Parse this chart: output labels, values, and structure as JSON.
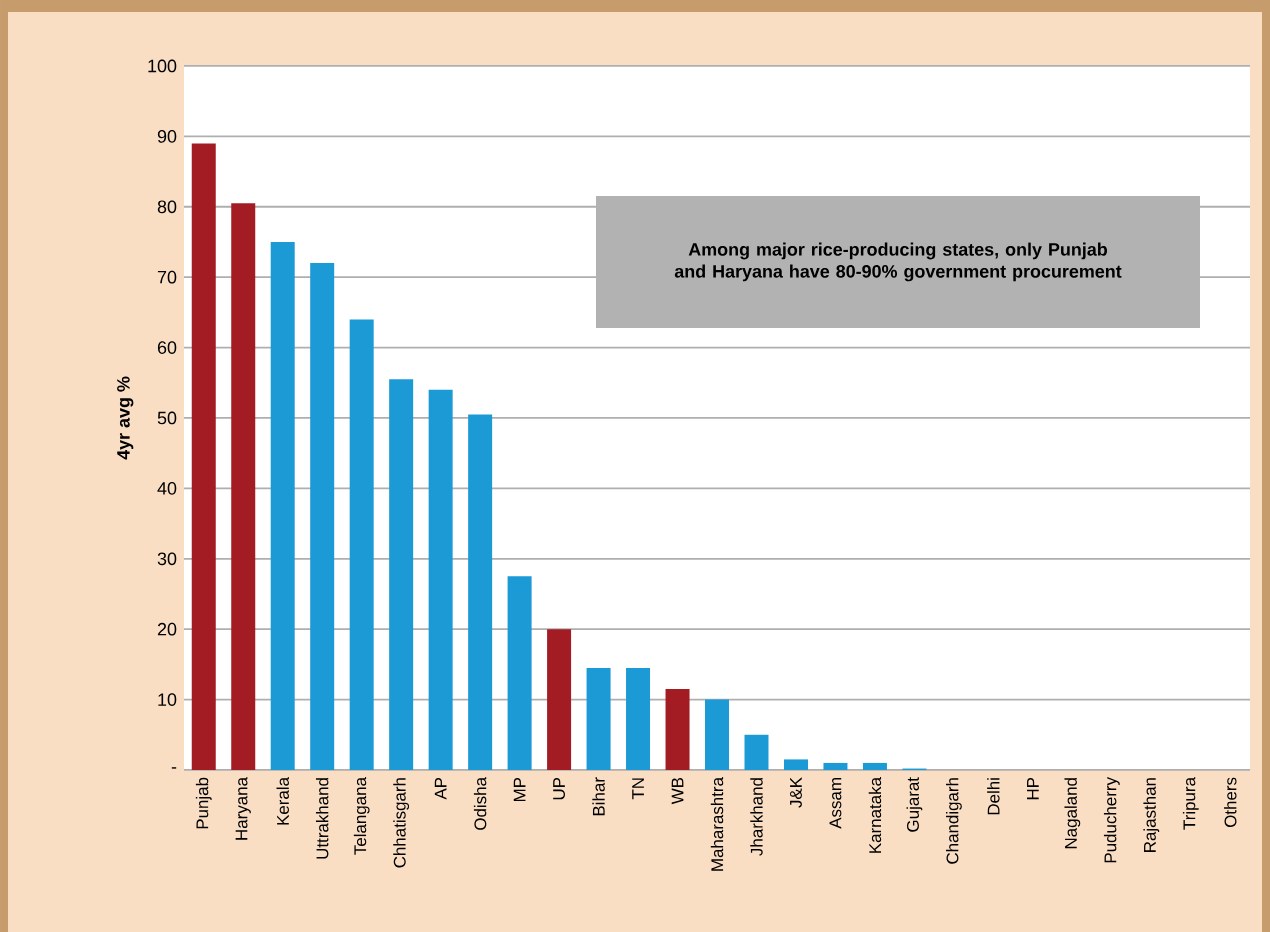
{
  "chart_data": {
    "type": "bar",
    "ylabel": "4yr avg %",
    "categories": [
      "Punjab",
      "Haryana",
      "Kerala",
      "Uttrakhand",
      "Telangana",
      "Chhatisgarh",
      "AP",
      "Odisha",
      "MP",
      "UP",
      "Bihar",
      "TN",
      "WB",
      "Maharashtra",
      "Jharkhand",
      "J&K",
      "Assam",
      "Karnataka",
      "Gujarat",
      "Chandigarh",
      "Delhi",
      "HP",
      "Nagaland",
      "Puducherry",
      "Rajasthan",
      "Tripura",
      "Others"
    ],
    "values": [
      89,
      80.5,
      75,
      72,
      64,
      55.5,
      54,
      50.5,
      27.5,
      20,
      14.5,
      14.5,
      11.5,
      10,
      5,
      1.5,
      1,
      1,
      0.2,
      0,
      0,
      0,
      0,
      0,
      0,
      0,
      0
    ],
    "colors": [
      "#a31c24",
      "#a31c24",
      "#1b9ad6",
      "#1b9ad6",
      "#1b9ad6",
      "#1b9ad6",
      "#1b9ad6",
      "#1b9ad6",
      "#1b9ad6",
      "#a31c24",
      "#1b9ad6",
      "#1b9ad6",
      "#a31c24",
      "#1b9ad6",
      "#1b9ad6",
      "#1b9ad6",
      "#1b9ad6",
      "#1b9ad6",
      "#1b9ad6",
      "#1b9ad6",
      "#1b9ad6",
      "#1b9ad6",
      "#1b9ad6",
      "#1b9ad6",
      "#1b9ad6",
      "#1b9ad6",
      "#1b9ad6"
    ],
    "ylim": [
      0,
      100
    ],
    "yticks": [
      {
        "value": 0,
        "label": "-"
      },
      10,
      20,
      30,
      40,
      50,
      60,
      70,
      80,
      90,
      100
    ],
    "grid": "y",
    "annotations": [
      "Among major rice-producing states, only Punjab and Haryana have 80-90% government procurement"
    ]
  }
}
